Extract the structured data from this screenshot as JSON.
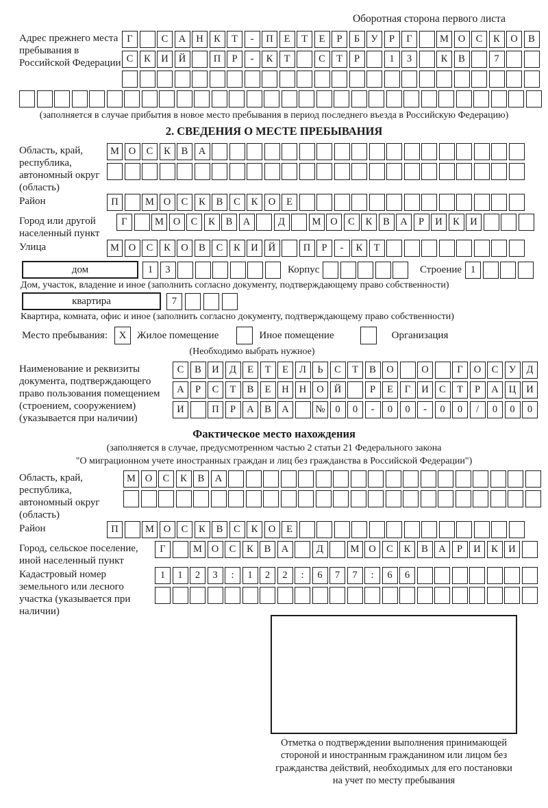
{
  "page": {
    "header_note": "Оборотная сторона первого листа"
  },
  "prev_address": {
    "label": "Адрес прежнего места пребывания в Российской Федерации",
    "rows": [
      [
        "Г",
        "",
        "С",
        "А",
        "Н",
        "К",
        "Т",
        "-",
        "П",
        "Е",
        "Т",
        "Е",
        "Р",
        "Б",
        "У",
        "Р",
        "Г",
        "",
        "М",
        "О",
        "С",
        "К",
        "О",
        "В"
      ],
      [
        "С",
        "К",
        "И",
        "Й",
        "",
        "П",
        "Р",
        "-",
        "К",
        "Т",
        "",
        "С",
        "Т",
        "Р",
        "",
        "1",
        "3",
        "",
        "К",
        "В",
        "",
        "7",
        "",
        ""
      ],
      [
        "",
        "",
        "",
        "",
        "",
        "",
        "",
        "",
        "",
        "",
        "",
        "",
        "",
        "",
        "",
        "",
        "",
        "",
        "",
        "",
        "",
        "",
        "",
        ""
      ]
    ],
    "row_full": [
      "",
      "",
      "",
      "",
      "",
      "",
      "",
      "",
      "",
      "",
      "",
      "",
      "",
      "",
      "",
      "",
      "",
      "",
      "",
      "",
      "",
      "",
      "",
      "",
      "",
      "",
      "",
      "",
      "",
      ""
    ],
    "caption": "(заполняется в случае прибытия в новое место пребывания в период последнего въезда в Российскую Федерацию)"
  },
  "section2": {
    "title": "2. СВЕДЕНИЯ О МЕСТЕ ПРЕБЫВАНИЯ",
    "region": {
      "label": "Область, край, республика, автономный округ (область)",
      "rows": [
        [
          "М",
          "О",
          "С",
          "К",
          "В",
          "А",
          "",
          "",
          "",
          "",
          "",
          "",
          "",
          "",
          "",
          "",
          "",
          "",
          "",
          "",
          "",
          "",
          "",
          ""
        ],
        [
          "",
          "",
          "",
          "",
          "",
          "",
          "",
          "",
          "",
          "",
          "",
          "",
          "",
          "",
          "",
          "",
          "",
          "",
          "",
          "",
          "",
          "",
          "",
          ""
        ]
      ]
    },
    "district": {
      "label": "Район",
      "row": [
        "П",
        "",
        "М",
        "О",
        "С",
        "К",
        "В",
        "С",
        "К",
        "О",
        "Е",
        "",
        "",
        "",
        "",
        "",
        "",
        "",
        "",
        "",
        "",
        "",
        "",
        ""
      ]
    },
    "city": {
      "label": "Город или другой населенный пункт",
      "row": [
        "Г",
        "",
        "М",
        "О",
        "С",
        "К",
        "В",
        "А",
        "",
        "Д",
        "",
        "М",
        "О",
        "С",
        "К",
        "В",
        "А",
        "Р",
        "И",
        "К",
        "И",
        "",
        "",
        ""
      ]
    },
    "street": {
      "label": "Улица",
      "row": [
        "М",
        "О",
        "С",
        "К",
        "О",
        "В",
        "С",
        "К",
        "И",
        "Й",
        "",
        "П",
        "Р",
        "-",
        "К",
        "Т",
        "",
        "",
        "",
        "",
        "",
        "",
        "",
        ""
      ]
    },
    "house": {
      "box_label": "дом",
      "cells": [
        "1",
        "3",
        "",
        "",
        "",
        "",
        "",
        ""
      ],
      "korpus_label": "Корпус",
      "korpus_cells": [
        "",
        "",
        "",
        "",
        ""
      ],
      "stroenie_label": "Строение",
      "stroenie_cells": [
        "1",
        "",
        "",
        ""
      ],
      "caption": "Дом, участок, владение и иное (заполнить согласно документу, подтверждающему право собственности)"
    },
    "apartment": {
      "box_label": "квартира",
      "cells": [
        "7",
        "",
        "",
        ""
      ],
      "caption": "Квартира, комната, офис и иное (заполнить согласно документу, подтверждающему право собственности)"
    },
    "stay_type": {
      "label": "Место пребывания:",
      "options": [
        {
          "label": "Жилое помещение",
          "mark": "X"
        },
        {
          "label": "Иное помещение",
          "mark": ""
        },
        {
          "label": "Организация",
          "mark": ""
        }
      ],
      "caption": "(Необходимо выбрать нужное)"
    },
    "document": {
      "label": "Наименование и реквизиты документа, подтверждающего право пользования помещением (строением, сооружением) (указывается при наличии)",
      "rows": [
        [
          "С",
          "В",
          "И",
          "Д",
          "Е",
          "Т",
          "Е",
          "Л",
          "Ь",
          "С",
          "Т",
          "В",
          "О",
          "",
          "О",
          "",
          "Г",
          "О",
          "С",
          "У",
          "Д"
        ],
        [
          "А",
          "Р",
          "С",
          "Т",
          "В",
          "Е",
          "Н",
          "Н",
          "О",
          "Й",
          "",
          "Р",
          "Е",
          "Г",
          "И",
          "С",
          "Т",
          "Р",
          "А",
          "Ц",
          "И"
        ],
        [
          "И",
          "",
          "П",
          "Р",
          "А",
          "В",
          "А",
          "",
          "№",
          "0",
          "0",
          "-",
          "0",
          "0",
          "-",
          "0",
          "0",
          "/",
          "0",
          "0",
          "0"
        ]
      ]
    }
  },
  "actual_location": {
    "title": "Фактическое место нахождения",
    "caption_line1": "(заполняется в случае, предусмотренном частью 2 статьи 21 Федерального закона",
    "caption_line2": "\"О миграционном учете иностранных граждан и лиц без гражданства в Российской Федерации\")",
    "region": {
      "label": "Область, край, республика, автономный округ (область)",
      "rows": [
        [
          "М",
          "О",
          "С",
          "К",
          "В",
          "А",
          "",
          "",
          "",
          "",
          "",
          "",
          "",
          "",
          "",
          "",
          "",
          "",
          "",
          "",
          "",
          "",
          "",
          ""
        ],
        [
          "",
          "",
          "",
          "",
          "",
          "",
          "",
          "",
          "",
          "",
          "",
          "",
          "",
          "",
          "",
          "",
          "",
          "",
          "",
          "",
          "",
          "",
          "",
          ""
        ]
      ]
    },
    "district": {
      "label": "Район",
      "row": [
        "П",
        "",
        "М",
        "О",
        "С",
        "К",
        "В",
        "С",
        "К",
        "О",
        "Е",
        "",
        "",
        "",
        "",
        "",
        "",
        "",
        "",
        "",
        "",
        "",
        "",
        ""
      ]
    },
    "city": {
      "label": "Город, сельское поселение, иной населенный пункт",
      "row": [
        "Г",
        "",
        "М",
        "О",
        "С",
        "К",
        "В",
        "А",
        "",
        "Д",
        "",
        "М",
        "О",
        "С",
        "К",
        "В",
        "А",
        "Р",
        "И",
        "К",
        "И",
        ""
      ]
    },
    "cadastral": {
      "label": "Кадастровый номер земельного или лесного участка (указывается при наличии)",
      "rows": [
        [
          "1",
          "1",
          "2",
          "3",
          ":",
          "1",
          "2",
          "2",
          ":",
          "6",
          "7",
          "7",
          ":",
          "6",
          "6",
          "",
          "",
          "",
          "",
          "",
          "",
          ""
        ],
        [
          "",
          "",
          "",
          "",
          "",
          "",
          "",
          "",
          "",
          "",
          "",
          "",
          "",
          "",
          "",
          "",
          "",
          "",
          "",
          "",
          "",
          ""
        ]
      ]
    },
    "stamp_note": "Отметка о подтверждении выполнения принимающей стороной и иностранным гражданином или лицом без гражданства действий, необходимых для его постановки на учет по месту пребывания"
  }
}
